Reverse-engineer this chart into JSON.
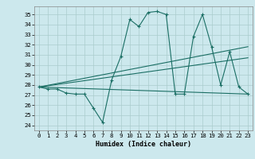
{
  "title": "",
  "xlabel": "Humidex (Indice chaleur)",
  "ylabel": "",
  "bg_color": "#cce8ed",
  "grid_color": "#aacccc",
  "line_color": "#1a6e64",
  "xlim": [
    -0.5,
    23.5
  ],
  "ylim": [
    23.5,
    35.8
  ],
  "yticks": [
    24,
    25,
    26,
    27,
    28,
    29,
    30,
    31,
    32,
    33,
    34,
    35
  ],
  "xticks": [
    0,
    1,
    2,
    3,
    4,
    5,
    6,
    7,
    8,
    9,
    10,
    11,
    12,
    13,
    14,
    15,
    16,
    17,
    18,
    19,
    20,
    21,
    22,
    23
  ],
  "curve1_x": [
    0,
    1,
    2,
    3,
    4,
    5,
    6,
    7,
    8,
    9,
    10,
    11,
    12,
    13,
    14,
    15,
    16,
    17,
    18,
    19,
    20,
    21,
    22,
    23
  ],
  "curve1_y": [
    27.8,
    27.6,
    27.6,
    27.2,
    27.1,
    27.1,
    25.7,
    24.3,
    28.5,
    30.8,
    34.5,
    33.8,
    35.2,
    35.3,
    35.0,
    27.1,
    27.1,
    32.8,
    35.0,
    31.8,
    28.0,
    31.3,
    27.8,
    27.1
  ],
  "line1_x": [
    0,
    23
  ],
  "line1_y": [
    27.8,
    31.8
  ],
  "line2_x": [
    0,
    23
  ],
  "line2_y": [
    27.8,
    30.7
  ],
  "line3_x": [
    0,
    23
  ],
  "line3_y": [
    27.8,
    27.1
  ],
  "xlabel_fontsize": 6.0,
  "tick_fontsize": 5.2
}
